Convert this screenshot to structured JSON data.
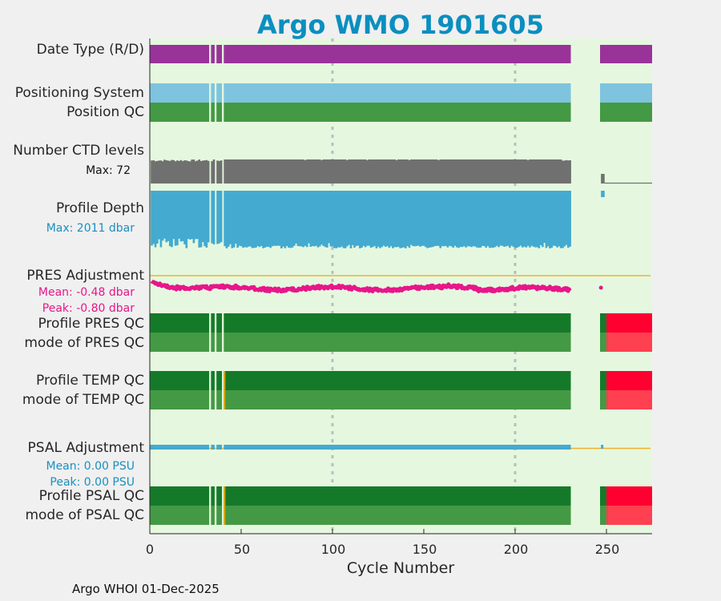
{
  "chart_data": {
    "type": "bar",
    "title": "Argo WMO 1901605",
    "xlabel": "Cycle Number",
    "xlim": [
      0,
      275
    ],
    "xticks": [
      0,
      50,
      100,
      150,
      200,
      250
    ],
    "xtick_labels": [
      "0",
      "50",
      "100",
      "150",
      "200",
      "250"
    ],
    "grid_x": [
      100,
      200
    ],
    "cycle_segments": [
      [
        0,
        32.5
      ],
      [
        33.5,
        35.5
      ],
      [
        36.5,
        39.5
      ],
      [
        40.5,
        230.5
      ],
      [
        246.5,
        275
      ]
    ],
    "rows": {
      "date_type": {
        "label": "Date Type (R/D)",
        "color": "#993399"
      },
      "positioning_system": {
        "label": "Positioning System",
        "color": "#7ec4de"
      },
      "position_qc": {
        "label": "Position QC",
        "color": "#449944"
      },
      "ctd_levels": {
        "label": "Number CTD levels",
        "max_label": "Max: 72",
        "max": 72,
        "color": "#707070"
      },
      "profile_depth": {
        "label": "Profile Depth",
        "max_label": "Max: 2011 dbar",
        "max": 2011,
        "units": "dbar",
        "color": "#44aad0"
      },
      "pres_adjustment": {
        "label": "PRES Adjustment",
        "mean_label": "Mean: -0.48 dbar",
        "peak_label": "Peak: -0.80 dbar",
        "mean": -0.48,
        "peak": -0.8,
        "color": "#e8168a",
        "ref_color": "#f0b030"
      },
      "profile_pres_qc": {
        "label": "Profile PRES QC"
      },
      "mode_pres_qc": {
        "label": "mode of PRES QC"
      },
      "profile_temp_qc": {
        "label": "Profile TEMP QC"
      },
      "mode_temp_qc": {
        "label": "mode of TEMP QC"
      },
      "psal_adjustment": {
        "label": "PSAL Adjustment",
        "mean_label": "Mean: 0.00 PSU",
        "peak_label": "Peak: 0.00 PSU",
        "mean": 0.0,
        "peak": 0.0,
        "color": "#44aad0",
        "ref_color": "#f0b030"
      },
      "profile_psal_qc": {
        "label": "Profile PSAL QC"
      },
      "mode_psal_qc": {
        "label": "mode of PSAL QC"
      }
    },
    "qc_colors": {
      "profile_good": "#147a2a",
      "mode_good": "#449944",
      "bad": "#ff0030",
      "bad_mode": "#ff4050",
      "flag": "#e0a000"
    },
    "qc_bad_from": 250
  },
  "footer": "Argo WHOI 01-Dec-2025",
  "colors": {
    "plot_bg": "#e5f8df",
    "figure_bg": "#f0f0f0",
    "title": "#0a8fbf"
  }
}
